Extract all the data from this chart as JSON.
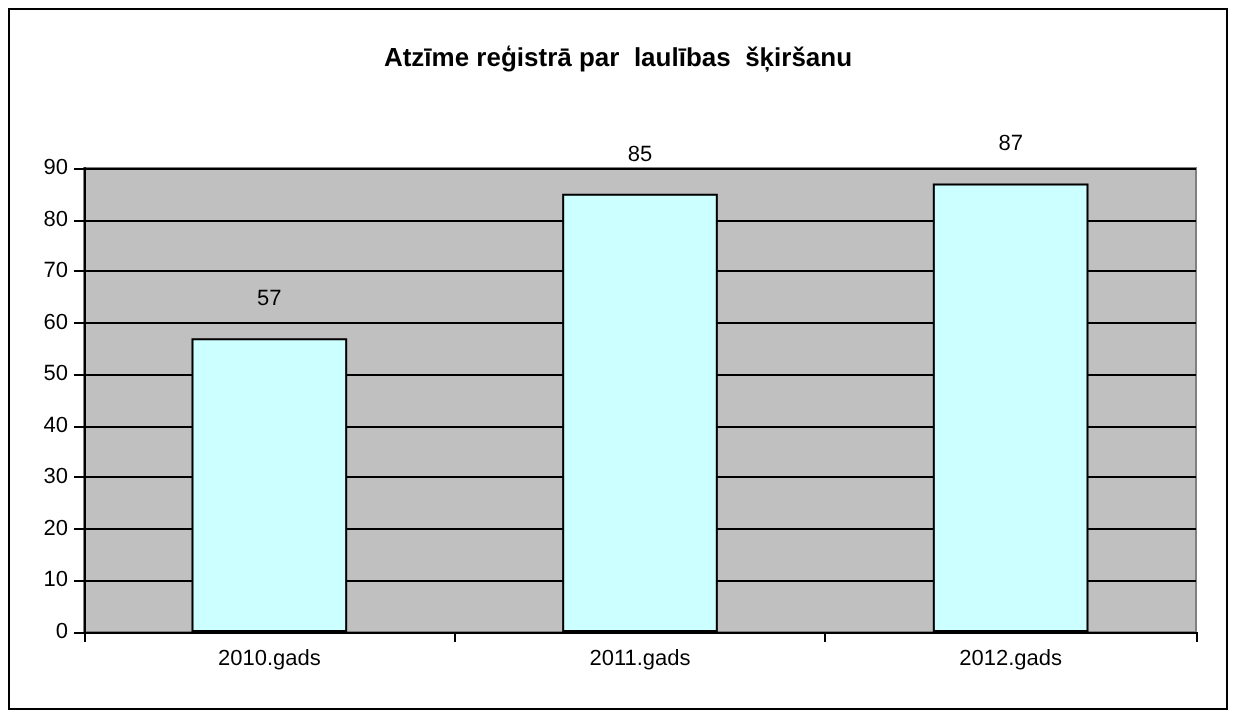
{
  "chart_data": {
    "type": "bar",
    "title": "Atzīme reģistrā par  laulības  šķiršanu",
    "categories": [
      "2010.gads",
      "2011.gads",
      "2012.gads"
    ],
    "values": [
      57,
      85,
      87
    ],
    "color": "#ccffff",
    "ylim": [
      0,
      90
    ],
    "yticks": [
      0,
      10,
      20,
      30,
      40,
      50,
      60,
      70,
      80,
      90
    ],
    "grid": "y",
    "data_labels": true
  }
}
